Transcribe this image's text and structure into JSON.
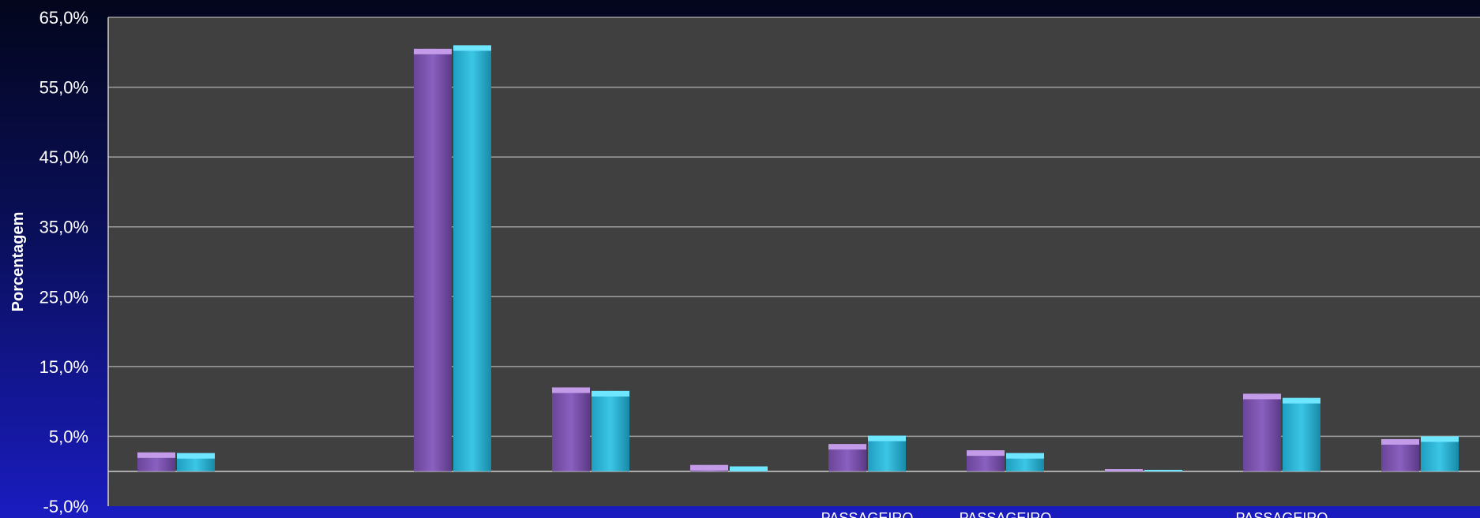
{
  "chart_data": {
    "type": "bar",
    "ylabel": "Porcentagem",
    "ylim": [
      -5,
      65
    ],
    "yticks": [
      "65,0%",
      "55,0%",
      "45,0%",
      "35,0%",
      "25,0%",
      "15,0%",
      "5,0%",
      "-5,0%"
    ],
    "grid": true,
    "categories": [
      "",
      "",
      "",
      "",
      "",
      "PASSAGEIRO",
      "PASSAGEIRO",
      "",
      "PASSAGEIRO",
      ""
    ],
    "series": [
      {
        "values": [
          2.7,
          0,
          60.5,
          12.0,
          0.9,
          3.9,
          3.0,
          0.3,
          11.1,
          4.6
        ]
      },
      {
        "values": [
          2.6,
          0,
          61.0,
          11.5,
          0.7,
          5.1,
          2.6,
          0.2,
          10.5,
          5.0
        ]
      }
    ],
    "colors": {
      "series": [
        "#7f56b3",
        "#2cb6d6"
      ],
      "series_top": [
        "#c39be8",
        "#6fe6ff"
      ],
      "plot_bg": "#404040",
      "grid": "#a0a0a0"
    }
  }
}
